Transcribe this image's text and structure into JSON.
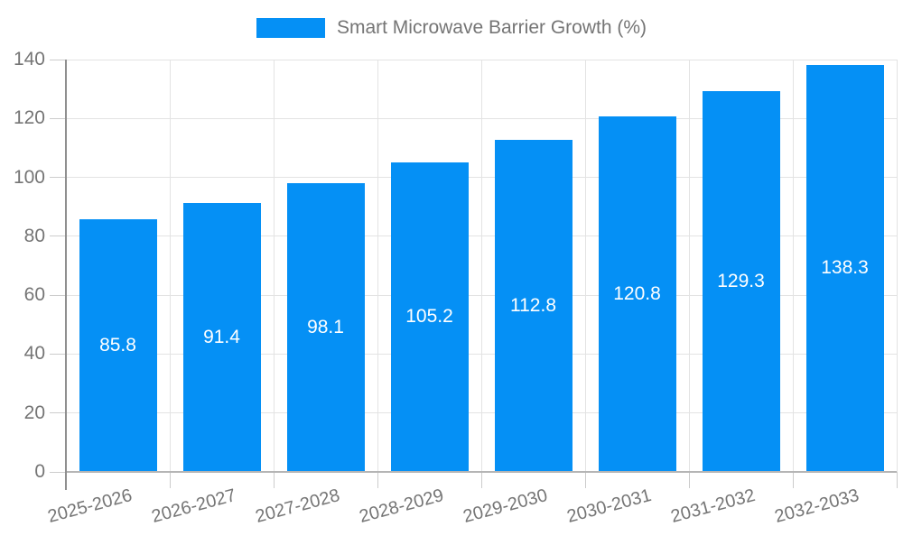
{
  "legend": {
    "label": "Smart Microwave Barrier Growth (%)"
  },
  "chart_data": {
    "type": "bar",
    "title": "",
    "legend_entries": [
      "Smart Microwave Barrier Growth (%)"
    ],
    "legend_position": "top",
    "categories": [
      "2025-2026",
      "2026-2027",
      "2027-2028",
      "2028-2029",
      "2029-2030",
      "2030-2031",
      "2031-2032",
      "2032-2033"
    ],
    "values": [
      85.8,
      91.4,
      98.1,
      105.2,
      112.8,
      120.8,
      129.3,
      138.3
    ],
    "value_labels": [
      "85.8",
      "91.4",
      "98.1",
      "105.2",
      "112.8",
      "120.8",
      "129.3",
      "138.3"
    ],
    "ylim": [
      0,
      140
    ],
    "yticks": [
      0,
      20,
      40,
      60,
      80,
      100,
      120,
      140
    ],
    "grid": true,
    "x_label_rotation_deg": -15,
    "colors": {
      "bar": "#0590F5",
      "value_label": "#ffffff",
      "axis_text": "#757575",
      "gridline": "#e3e3e3",
      "y_axis_line": "#8f8f8f",
      "x_axis_line": "#b5b5b5",
      "tick": "#cccccc"
    }
  }
}
